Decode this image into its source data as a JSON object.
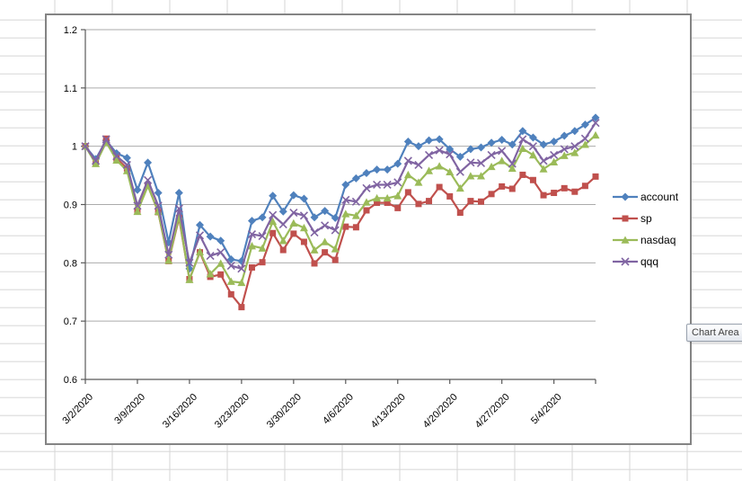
{
  "tooltip": {
    "text": "Chart Area"
  },
  "chart_data": {
    "type": "line",
    "title": "",
    "xlabel": "",
    "ylabel": "",
    "ylim": [
      0.6,
      1.2
    ],
    "grid": "horizontal",
    "legend_position": "right",
    "y_tick_labels": [
      "1.2",
      "1.1",
      "1",
      "0.9",
      "0.8",
      "0.7",
      "0.6"
    ],
    "y_tick_values": [
      1.2,
      1.1,
      1.0,
      0.9,
      0.8,
      0.7,
      0.6
    ],
    "x_tick_labels": [
      "3/2/2020",
      "3/9/2020",
      "3/16/2020",
      "3/23/2020",
      "3/30/2020",
      "4/6/2020",
      "4/13/2020",
      "4/20/2020",
      "4/27/2020",
      "5/4/2020"
    ],
    "x_tick_indices": [
      0,
      5,
      10,
      15,
      20,
      25,
      30,
      35,
      40,
      45
    ],
    "dates": [
      "3/2/2020",
      "3/3/2020",
      "3/4/2020",
      "3/5/2020",
      "3/6/2020",
      "3/9/2020",
      "3/10/2020",
      "3/11/2020",
      "3/12/2020",
      "3/13/2020",
      "3/16/2020",
      "3/17/2020",
      "3/18/2020",
      "3/19/2020",
      "3/20/2020",
      "3/23/2020",
      "3/24/2020",
      "3/25/2020",
      "3/26/2020",
      "3/27/2020",
      "3/30/2020",
      "3/31/2020",
      "4/1/2020",
      "4/2/2020",
      "4/3/2020",
      "4/6/2020",
      "4/7/2020",
      "4/8/2020",
      "4/9/2020",
      "4/10/2020",
      "4/13/2020",
      "4/14/2020",
      "4/15/2020",
      "4/16/2020",
      "4/17/2020",
      "4/20/2020",
      "4/21/2020",
      "4/22/2020",
      "4/23/2020",
      "4/24/2020",
      "4/27/2020",
      "4/28/2020",
      "4/29/2020",
      "4/30/2020",
      "5/1/2020",
      "5/4/2020",
      "5/5/2020",
      "5/6/2020",
      "5/7/2020",
      "5/8/2020"
    ],
    "series": [
      {
        "name": "account",
        "color": "#4F81BD",
        "marker": "diamond",
        "values": [
          1.0,
          0.978,
          1.01,
          0.988,
          0.98,
          0.925,
          0.972,
          0.92,
          0.835,
          0.92,
          0.79,
          0.865,
          0.845,
          0.838,
          0.806,
          0.803,
          0.872,
          0.878,
          0.915,
          0.888,
          0.916,
          0.91,
          0.878,
          0.889,
          0.877,
          0.934,
          0.945,
          0.954,
          0.96,
          0.96,
          0.97,
          1.008,
          1.0,
          1.01,
          1.012,
          0.995,
          0.982,
          0.995,
          0.998,
          1.006,
          1.011,
          1.003,
          1.026,
          1.015,
          1.003,
          1.008,
          1.018,
          1.026,
          1.037,
          1.049
        ]
      },
      {
        "name": "sp",
        "color": "#C0504D",
        "marker": "square",
        "values": [
          1.0,
          0.972,
          1.013,
          0.979,
          0.962,
          0.889,
          0.933,
          0.887,
          0.803,
          0.877,
          0.772,
          0.818,
          0.776,
          0.78,
          0.746,
          0.724,
          0.792,
          0.801,
          0.851,
          0.822,
          0.85,
          0.836,
          0.799,
          0.818,
          0.805,
          0.862,
          0.861,
          0.89,
          0.903,
          0.903,
          0.894,
          0.921,
          0.901,
          0.906,
          0.93,
          0.914,
          0.886,
          0.906,
          0.905,
          0.918,
          0.931,
          0.927,
          0.951,
          0.942,
          0.916,
          0.92,
          0.928,
          0.922,
          0.932,
          0.948
        ]
      },
      {
        "name": "nasdaq",
        "color": "#9BBB59",
        "marker": "triangle",
        "values": [
          1.0,
          0.97,
          1.007,
          0.976,
          0.958,
          0.888,
          0.932,
          0.888,
          0.804,
          0.88,
          0.771,
          0.819,
          0.781,
          0.799,
          0.768,
          0.766,
          0.829,
          0.825,
          0.871,
          0.838,
          0.868,
          0.86,
          0.822,
          0.836,
          0.824,
          0.884,
          0.881,
          0.904,
          0.911,
          0.911,
          0.915,
          0.951,
          0.938,
          0.958,
          0.966,
          0.956,
          0.928,
          0.949,
          0.949,
          0.965,
          0.975,
          0.962,
          0.996,
          0.985,
          0.961,
          0.973,
          0.984,
          0.989,
          1.003,
          1.019
        ]
      },
      {
        "name": "qqq",
        "color": "#8064A2",
        "marker": "x",
        "values": [
          1.0,
          0.975,
          1.012,
          0.983,
          0.968,
          0.898,
          0.942,
          0.898,
          0.814,
          0.893,
          0.8,
          0.847,
          0.812,
          0.818,
          0.795,
          0.79,
          0.849,
          0.846,
          0.882,
          0.866,
          0.886,
          0.881,
          0.852,
          0.864,
          0.856,
          0.908,
          0.905,
          0.928,
          0.934,
          0.934,
          0.938,
          0.975,
          0.968,
          0.985,
          0.993,
          0.986,
          0.956,
          0.972,
          0.971,
          0.985,
          0.992,
          0.97,
          1.012,
          1.0,
          0.975,
          0.985,
          0.995,
          1.0,
          1.013,
          1.04
        ]
      }
    ]
  }
}
